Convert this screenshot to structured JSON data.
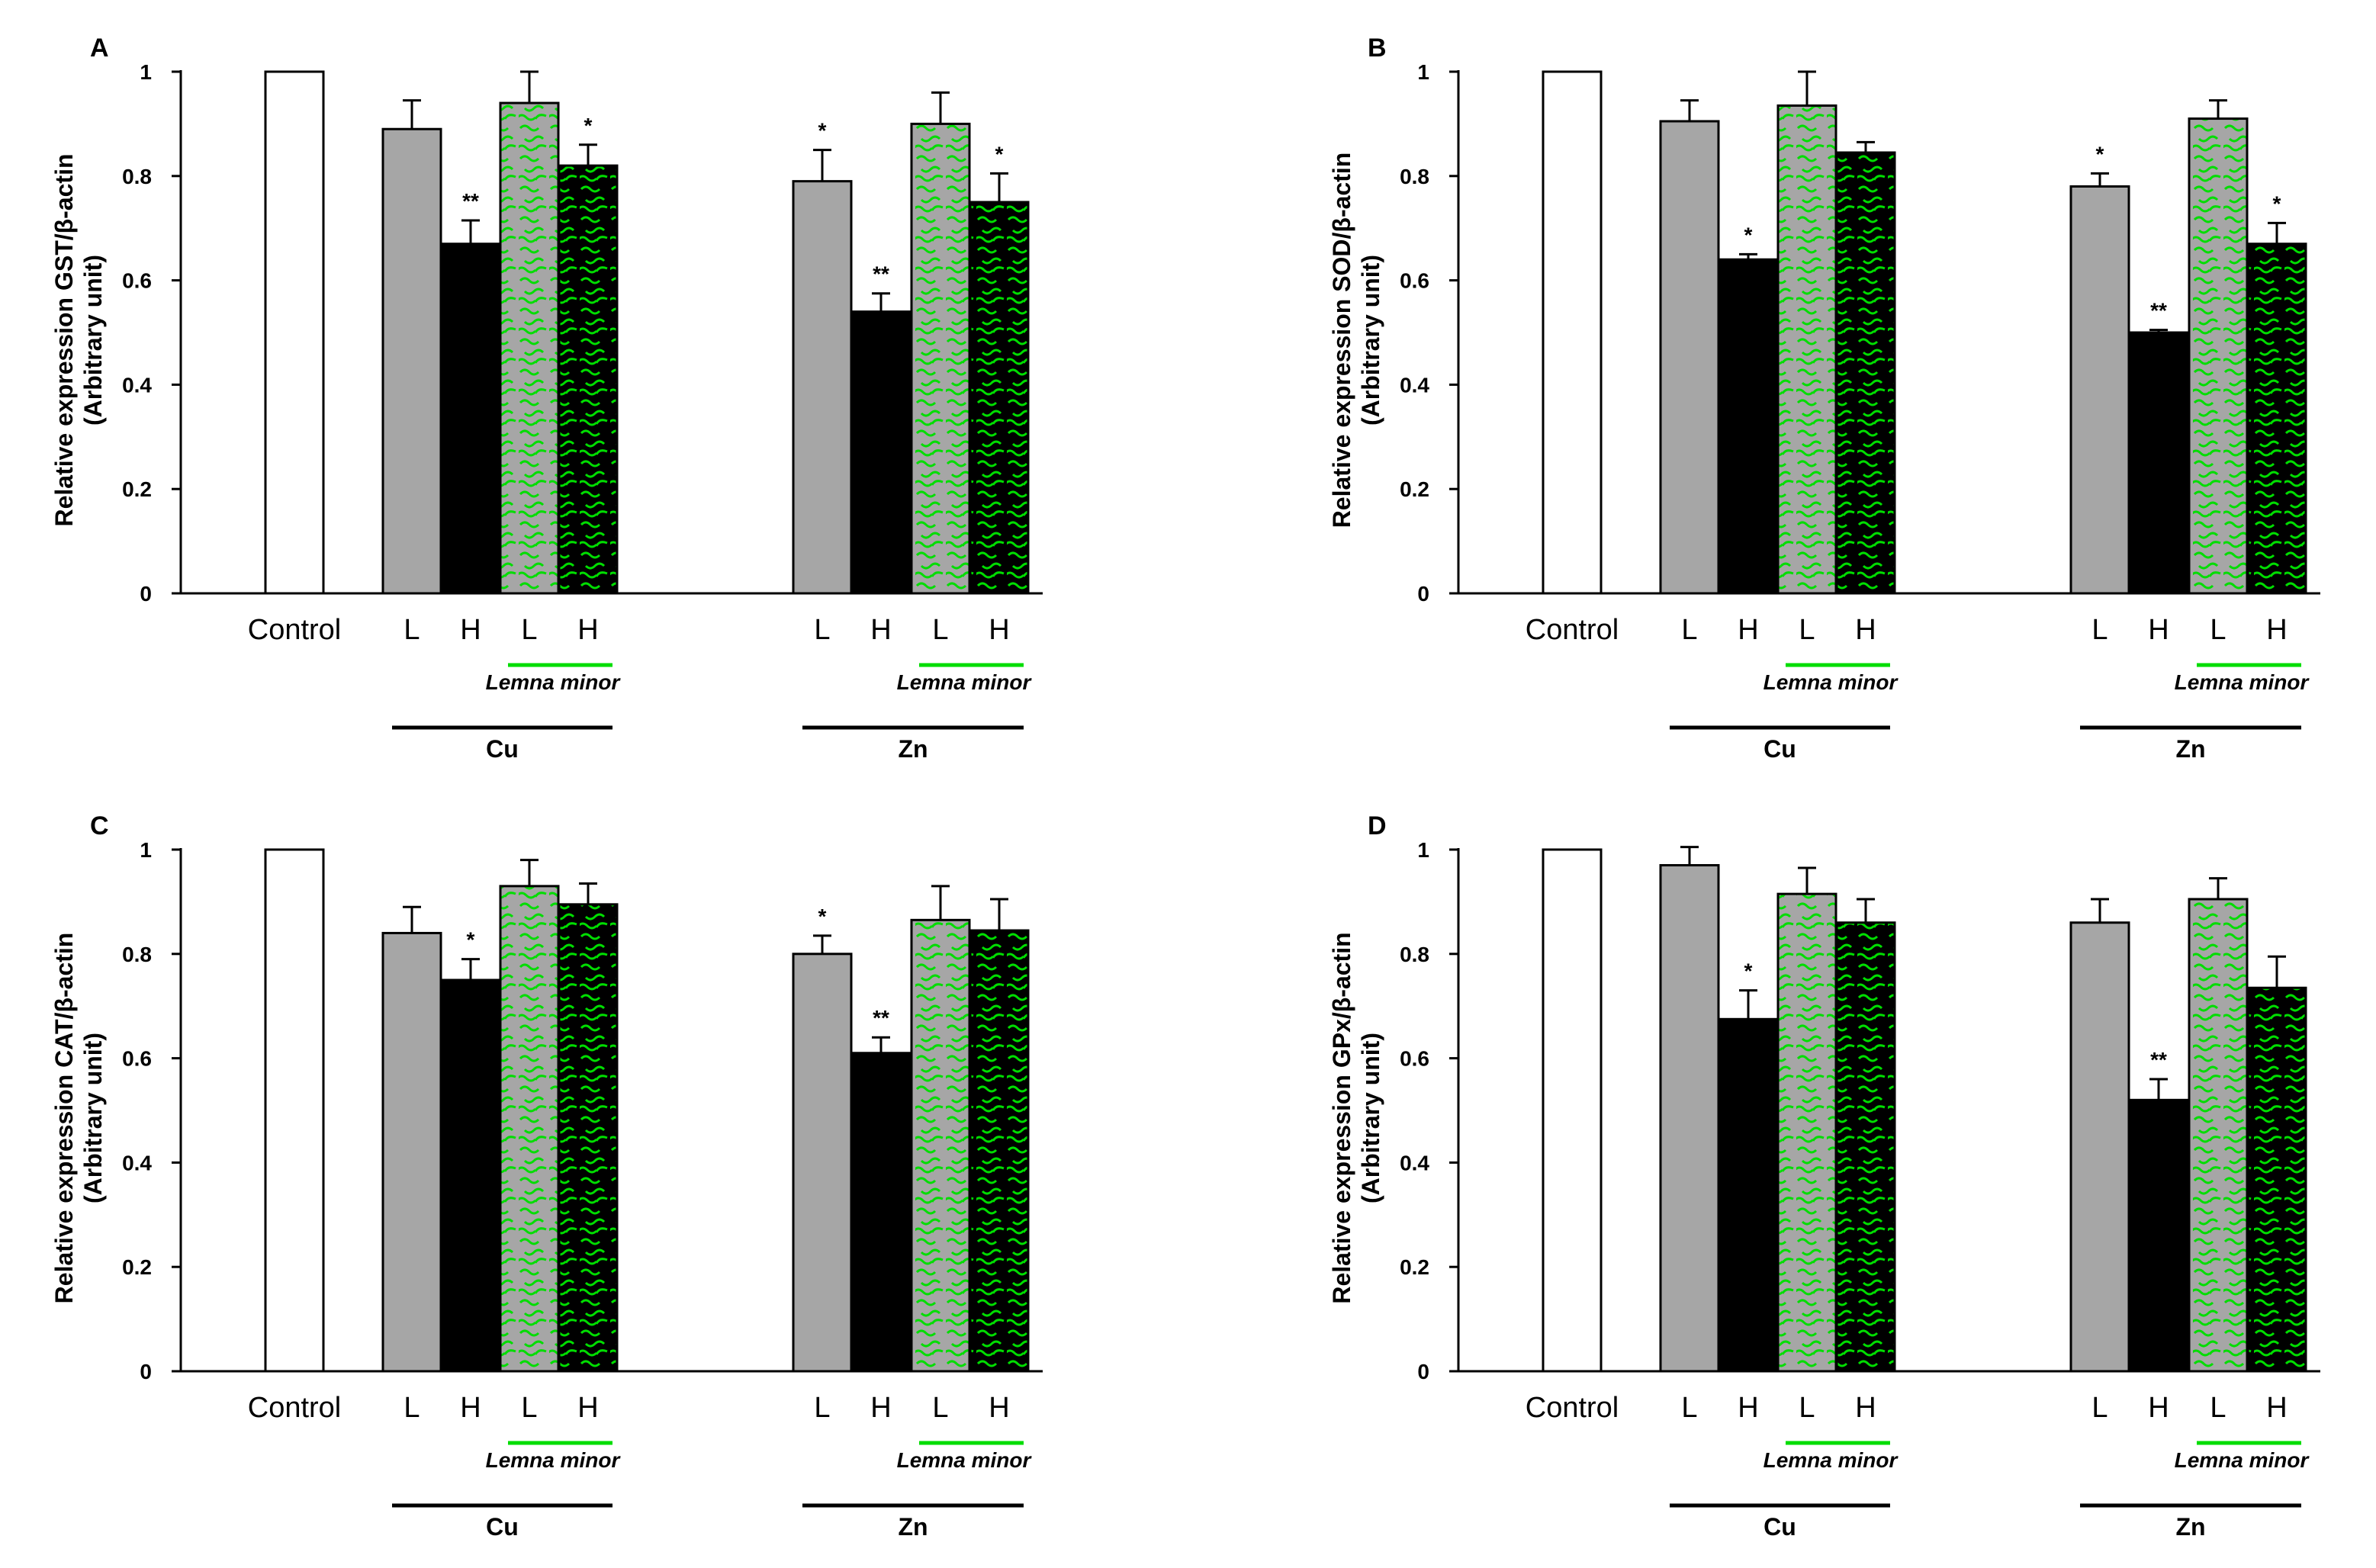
{
  "colors": {
    "control": "#ffffff",
    "low": "#a6a6a6",
    "high": "#000000",
    "lemna_low_bg": "#a6a6a6",
    "lemna_high_bg": "#000000",
    "pattern": "#00dd00",
    "axis": "#000000"
  },
  "chart_data": [
    {
      "type": "bar",
      "panel": "A",
      "ylabel_line1": "Relative expression GST/β-actin",
      "ylabel_line2": "(Arbitrary unit)",
      "ylim": [
        0,
        1
      ],
      "yticks": [
        "0",
        "0.2",
        "0.4",
        "0.6",
        "0.8",
        "1"
      ],
      "groups": [
        {
          "name": "",
          "bars": [
            {
              "label": "Control",
              "value": 1.0,
              "error": null,
              "sig": "",
              "style": "control"
            }
          ]
        },
        {
          "name": "Cu",
          "lemna_label": "Lemna minor",
          "bars": [
            {
              "label": "L",
              "value": 0.89,
              "error": 0.055,
              "sig": "",
              "style": "low"
            },
            {
              "label": "H",
              "value": 0.67,
              "error": 0.045,
              "sig": "**",
              "style": "high"
            },
            {
              "label": "L",
              "value": 0.94,
              "error": 0.06,
              "sig": "",
              "style": "lemna_low"
            },
            {
              "label": "H",
              "value": 0.82,
              "error": 0.04,
              "sig": "*",
              "style": "lemna_high"
            }
          ]
        },
        {
          "name": "Zn",
          "lemna_label": "Lemna minor",
          "bars": [
            {
              "label": "L",
              "value": 0.79,
              "error": 0.06,
              "sig": "*",
              "style": "low"
            },
            {
              "label": "H",
              "value": 0.54,
              "error": 0.035,
              "sig": "**",
              "style": "high"
            },
            {
              "label": "L",
              "value": 0.9,
              "error": 0.06,
              "sig": "",
              "style": "lemna_low"
            },
            {
              "label": "H",
              "value": 0.75,
              "error": 0.055,
              "sig": "*",
              "style": "lemna_high"
            }
          ]
        }
      ]
    },
    {
      "type": "bar",
      "panel": "B",
      "ylabel_line1": "Relative expression SOD/β-actin",
      "ylabel_line2": "(Arbitrary unit)",
      "ylim": [
        0,
        1
      ],
      "yticks": [
        "0",
        "0.2",
        "0.4",
        "0.6",
        "0.8",
        "1"
      ],
      "groups": [
        {
          "name": "",
          "bars": [
            {
              "label": "Control",
              "value": 1.0,
              "error": null,
              "sig": "",
              "style": "control"
            }
          ]
        },
        {
          "name": "Cu",
          "lemna_label": "Lemna minor",
          "bars": [
            {
              "label": "L",
              "value": 0.905,
              "error": 0.04,
              "sig": "",
              "style": "low"
            },
            {
              "label": "H",
              "value": 0.64,
              "error": 0.01,
              "sig": "*",
              "style": "high"
            },
            {
              "label": "L",
              "value": 0.935,
              "error": 0.065,
              "sig": "",
              "style": "lemna_low"
            },
            {
              "label": "H",
              "value": 0.845,
              "error": 0.02,
              "sig": "",
              "style": "lemna_high"
            }
          ]
        },
        {
          "name": "Zn",
          "lemna_label": "Lemna minor",
          "bars": [
            {
              "label": "L",
              "value": 0.78,
              "error": 0.025,
              "sig": "*",
              "style": "low"
            },
            {
              "label": "H",
              "value": 0.5,
              "error": 0.005,
              "sig": "**",
              "style": "high"
            },
            {
              "label": "L",
              "value": 0.91,
              "error": 0.035,
              "sig": "",
              "style": "lemna_low"
            },
            {
              "label": "H",
              "value": 0.67,
              "error": 0.04,
              "sig": "*",
              "style": "lemna_high"
            }
          ]
        }
      ]
    },
    {
      "type": "bar",
      "panel": "C",
      "ylabel_line1": "Relative expression CAT/β-actin",
      "ylabel_line2": "(Arbitrary unit)",
      "ylim": [
        0,
        1
      ],
      "yticks": [
        "0",
        "0.2",
        "0.4",
        "0.6",
        "0.8",
        "1"
      ],
      "groups": [
        {
          "name": "",
          "bars": [
            {
              "label": "Control",
              "value": 1.0,
              "error": null,
              "sig": "",
              "style": "control"
            }
          ]
        },
        {
          "name": "Cu",
          "lemna_label": "Lemna minor",
          "bars": [
            {
              "label": "L",
              "value": 0.84,
              "error": 0.05,
              "sig": "",
              "style": "low"
            },
            {
              "label": "H",
              "value": 0.75,
              "error": 0.04,
              "sig": "*",
              "style": "high"
            },
            {
              "label": "L",
              "value": 0.93,
              "error": 0.05,
              "sig": "",
              "style": "lemna_low"
            },
            {
              "label": "H",
              "value": 0.895,
              "error": 0.04,
              "sig": "",
              "style": "lemna_high"
            }
          ]
        },
        {
          "name": "Zn",
          "lemna_label": "Lemna minor",
          "bars": [
            {
              "label": "L",
              "value": 0.8,
              "error": 0.035,
              "sig": "*",
              "style": "low"
            },
            {
              "label": "H",
              "value": 0.61,
              "error": 0.03,
              "sig": "**",
              "style": "high"
            },
            {
              "label": "L",
              "value": 0.865,
              "error": 0.065,
              "sig": "",
              "style": "lemna_low"
            },
            {
              "label": "H",
              "value": 0.845,
              "error": 0.06,
              "sig": "",
              "style": "lemna_high"
            }
          ]
        }
      ]
    },
    {
      "type": "bar",
      "panel": "D",
      "ylabel_line1": "Relative expression GPx/β-actin",
      "ylabel_line2": "(Arbitrary unit)",
      "ylim": [
        0,
        1
      ],
      "yticks": [
        "0",
        "0.2",
        "0.4",
        "0.6",
        "0.8",
        "1"
      ],
      "groups": [
        {
          "name": "",
          "bars": [
            {
              "label": "Control",
              "value": 1.0,
              "error": null,
              "sig": "",
              "style": "control"
            }
          ]
        },
        {
          "name": "Cu",
          "lemna_label": "Lemna minor",
          "bars": [
            {
              "label": "L",
              "value": 0.97,
              "error": 0.035,
              "sig": "",
              "style": "low"
            },
            {
              "label": "H",
              "value": 0.675,
              "error": 0.055,
              "sig": "*",
              "style": "high"
            },
            {
              "label": "L",
              "value": 0.915,
              "error": 0.05,
              "sig": "",
              "style": "lemna_low"
            },
            {
              "label": "H",
              "value": 0.86,
              "error": 0.045,
              "sig": "",
              "style": "lemna_high"
            }
          ]
        },
        {
          "name": "Zn",
          "lemna_label": "Lemna minor",
          "bars": [
            {
              "label": "L",
              "value": 0.86,
              "error": 0.045,
              "sig": "",
              "style": "low"
            },
            {
              "label": "H",
              "value": 0.52,
              "error": 0.04,
              "sig": "**",
              "style": "high"
            },
            {
              "label": "L",
              "value": 0.905,
              "error": 0.04,
              "sig": "",
              "style": "lemna_low"
            },
            {
              "label": "H",
              "value": 0.735,
              "error": 0.06,
              "sig": "",
              "style": "lemna_high"
            }
          ]
        }
      ]
    }
  ]
}
